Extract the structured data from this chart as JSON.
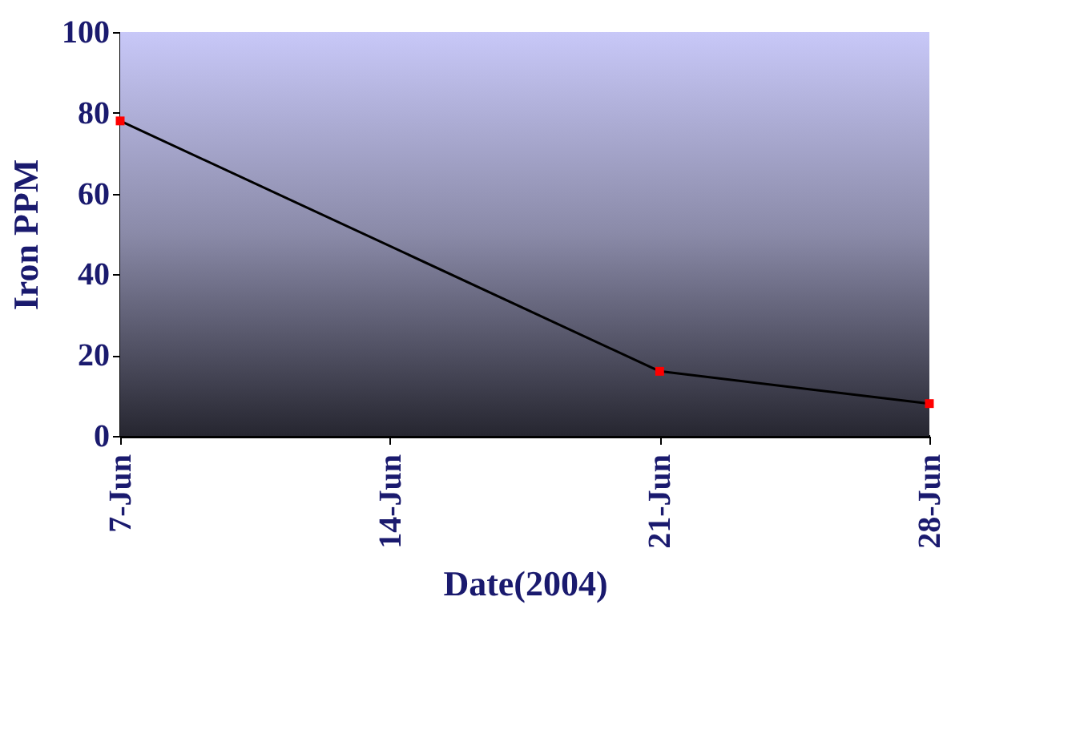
{
  "chart_data": {
    "type": "line",
    "xlabel": "Date(2004)",
    "ylabel": "Iron PPM",
    "x": [
      "2004-06-07",
      "2004-06-21",
      "2004-06-28"
    ],
    "series": [
      {
        "color": "#000000",
        "colors": [
          "#ff0000",
          "#ff0000",
          "#ff0000"
        ],
        "values": [
          78,
          16,
          8
        ]
      }
    ],
    "xlim": [
      "2004-06-07",
      "2004-06-28"
    ],
    "xticks": [
      {
        "value": "2004-06-07",
        "label": "7-Jun"
      },
      {
        "value": "2004-06-14",
        "label": "14-Jun"
      },
      {
        "value": "2004-06-21",
        "label": "21-Jun"
      },
      {
        "value": "2004-06-28",
        "label": "28-Jun"
      }
    ],
    "ylim": [
      0,
      100
    ],
    "yticks": [
      0,
      20,
      40,
      60,
      80,
      100
    ],
    "grid": false,
    "marker": "square",
    "line_style": "solid"
  }
}
